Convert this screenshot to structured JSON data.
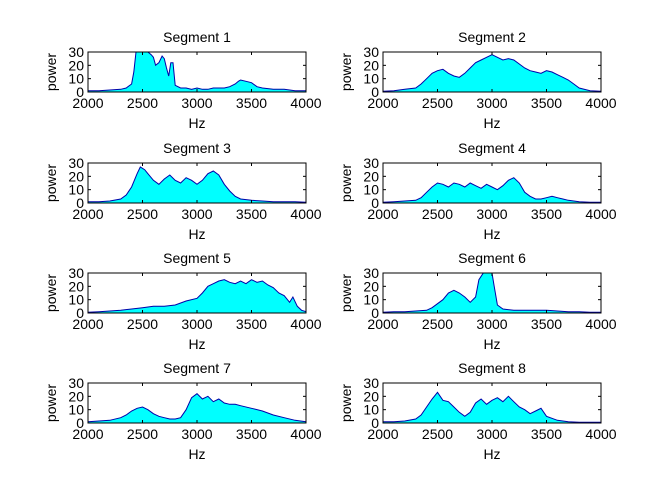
{
  "chart_data": [
    {
      "type": "area",
      "title": "Segment 1",
      "xlabel": "Hz",
      "ylabel": "power",
      "xlim": [
        2000,
        4000
      ],
      "ylim": [
        0,
        30
      ],
      "xticks": [
        2000,
        2500,
        3000,
        3500,
        4000
      ],
      "yticks": [
        0,
        10,
        20,
        30
      ],
      "fill_color": "#00ffff",
      "line_color": "#0000aa",
      "x": [
        2000,
        2100,
        2200,
        2300,
        2350,
        2400,
        2420,
        2440,
        2460,
        2500,
        2520,
        2550,
        2580,
        2600,
        2620,
        2650,
        2680,
        2700,
        2720,
        2740,
        2760,
        2780,
        2800,
        2850,
        2900,
        2950,
        3000,
        3050,
        3100,
        3150,
        3200,
        3250,
        3300,
        3350,
        3380,
        3400,
        3450,
        3500,
        3550,
        3600,
        3700,
        3800,
        3900,
        4000
      ],
      "values": [
        1,
        1,
        1.5,
        2,
        3,
        6,
        15,
        30,
        30,
        30,
        30,
        30,
        28,
        26,
        20,
        22,
        27,
        25,
        18,
        12,
        22,
        22,
        5,
        3,
        3,
        2,
        3,
        2,
        2,
        3,
        3,
        3,
        4,
        6,
        8,
        9,
        8,
        7,
        4,
        3,
        2,
        2,
        1,
        1
      ]
    },
    {
      "type": "area",
      "title": "Segment 2",
      "xlabel": "Hz",
      "ylabel": "power",
      "xlim": [
        2000,
        4000
      ],
      "ylim": [
        0,
        30
      ],
      "xticks": [
        2000,
        2500,
        3000,
        3500,
        4000
      ],
      "yticks": [
        0,
        10,
        20,
        30
      ],
      "fill_color": "#00ffff",
      "line_color": "#0000aa",
      "x": [
        2000,
        2100,
        2200,
        2300,
        2350,
        2400,
        2450,
        2500,
        2550,
        2600,
        2650,
        2700,
        2750,
        2800,
        2850,
        2900,
        2950,
        3000,
        3050,
        3100,
        3150,
        3200,
        3250,
        3300,
        3350,
        3400,
        3450,
        3500,
        3550,
        3600,
        3650,
        3700,
        3750,
        3800,
        3900,
        4000
      ],
      "values": [
        0.5,
        1,
        2,
        3,
        6,
        10,
        14,
        16,
        17,
        14,
        12,
        11,
        14,
        18,
        22,
        24,
        26,
        28,
        26,
        24,
        25,
        24,
        21,
        18,
        16,
        15,
        14,
        16,
        15,
        13,
        11,
        9,
        6,
        3,
        1,
        0.5
      ]
    },
    {
      "type": "area",
      "title": "Segment 3",
      "xlabel": "Hz",
      "ylabel": "power",
      "xlim": [
        2000,
        4000
      ],
      "ylim": [
        0,
        30
      ],
      "xticks": [
        2000,
        2500,
        3000,
        3500,
        4000
      ],
      "yticks": [
        0,
        10,
        20,
        30
      ],
      "fill_color": "#00ffff",
      "line_color": "#0000aa",
      "x": [
        2000,
        2100,
        2200,
        2300,
        2350,
        2400,
        2450,
        2480,
        2520,
        2550,
        2600,
        2650,
        2700,
        2750,
        2800,
        2850,
        2900,
        2950,
        3000,
        3050,
        3100,
        3150,
        3200,
        3250,
        3300,
        3350,
        3400,
        3500,
        3600,
        3700,
        3800,
        3900,
        4000
      ],
      "values": [
        1,
        1,
        1.5,
        3,
        6,
        12,
        22,
        27,
        25,
        22,
        17,
        14,
        18,
        21,
        17,
        15,
        19,
        17,
        14,
        17,
        22,
        24,
        21,
        14,
        9,
        5,
        3,
        2,
        1.5,
        1,
        1,
        1,
        0.5
      ]
    },
    {
      "type": "area",
      "title": "Segment 4",
      "xlabel": "Hz",
      "ylabel": "power",
      "xlim": [
        2000,
        4000
      ],
      "ylim": [
        0,
        30
      ],
      "xticks": [
        2000,
        2500,
        3000,
        3500,
        4000
      ],
      "yticks": [
        0,
        10,
        20,
        30
      ],
      "fill_color": "#00ffff",
      "line_color": "#0000aa",
      "x": [
        2000,
        2100,
        2200,
        2300,
        2350,
        2400,
        2450,
        2500,
        2550,
        2600,
        2650,
        2700,
        2750,
        2800,
        2850,
        2900,
        2950,
        3000,
        3050,
        3100,
        3150,
        3200,
        3250,
        3300,
        3350,
        3400,
        3450,
        3500,
        3550,
        3600,
        3650,
        3700,
        3800,
        3900,
        4000
      ],
      "values": [
        0.5,
        1,
        1.5,
        2,
        4,
        8,
        12,
        15,
        14,
        12,
        15,
        14,
        12,
        15,
        13,
        11,
        14,
        12,
        10,
        13,
        17,
        19,
        15,
        8,
        5,
        3,
        3,
        4,
        5,
        4,
        3,
        2,
        1,
        0.5,
        0.5
      ]
    },
    {
      "type": "area",
      "title": "Segment 5",
      "xlabel": "Hz",
      "ylabel": "power",
      "xlim": [
        2000,
        4000
      ],
      "ylim": [
        0,
        30
      ],
      "xticks": [
        2000,
        2500,
        3000,
        3500,
        4000
      ],
      "yticks": [
        0,
        10,
        20,
        30
      ],
      "fill_color": "#00ffff",
      "line_color": "#0000aa",
      "x": [
        2000,
        2100,
        2200,
        2300,
        2400,
        2500,
        2600,
        2700,
        2800,
        2900,
        3000,
        3050,
        3100,
        3150,
        3200,
        3250,
        3300,
        3350,
        3400,
        3450,
        3500,
        3550,
        3600,
        3650,
        3700,
        3750,
        3800,
        3850,
        3880,
        3920,
        3960,
        4000
      ],
      "values": [
        0.5,
        1,
        1.5,
        2,
        3,
        4,
        5,
        5,
        6,
        9,
        11,
        15,
        20,
        22,
        24,
        25,
        23,
        22,
        24,
        22,
        25,
        23,
        24,
        21,
        19,
        15,
        13,
        8,
        12,
        5,
        2,
        1
      ]
    },
    {
      "type": "area",
      "title": "Segment 6",
      "xlabel": "Hz",
      "ylabel": "power",
      "xlim": [
        2000,
        4000
      ],
      "ylim": [
        0,
        30
      ],
      "xticks": [
        2000,
        2500,
        3000,
        3500,
        4000
      ],
      "yticks": [
        0,
        10,
        20,
        30
      ],
      "fill_color": "#00ffff",
      "line_color": "#0000aa",
      "x": [
        2000,
        2100,
        2200,
        2300,
        2400,
        2450,
        2500,
        2550,
        2600,
        2650,
        2700,
        2750,
        2800,
        2850,
        2880,
        2920,
        2960,
        3000,
        3020,
        3050,
        3100,
        3200,
        3300,
        3400,
        3500,
        3600,
        3700,
        3800,
        3900,
        4000
      ],
      "values": [
        0.5,
        1,
        1,
        1.5,
        2,
        4,
        7,
        10,
        15,
        17,
        15,
        12,
        8,
        12,
        25,
        30,
        30,
        30,
        20,
        6,
        3,
        2,
        2,
        2,
        2,
        1.5,
        1,
        1,
        0.5,
        0.5
      ]
    },
    {
      "type": "area",
      "title": "Segment 7",
      "xlabel": "Hz",
      "ylabel": "power",
      "xlim": [
        2000,
        4000
      ],
      "ylim": [
        0,
        30
      ],
      "xticks": [
        2000,
        2500,
        3000,
        3500,
        4000
      ],
      "yticks": [
        0,
        10,
        20,
        30
      ],
      "fill_color": "#00ffff",
      "line_color": "#0000aa",
      "x": [
        2000,
        2100,
        2200,
        2300,
        2350,
        2400,
        2450,
        2500,
        2550,
        2600,
        2650,
        2700,
        2750,
        2800,
        2850,
        2900,
        2950,
        3000,
        3050,
        3100,
        3150,
        3200,
        3250,
        3300,
        3350,
        3400,
        3500,
        3600,
        3700,
        3800,
        3900,
        4000
      ],
      "values": [
        1,
        1.5,
        2,
        4,
        6,
        9,
        11,
        12,
        10,
        7,
        5,
        4,
        3,
        3,
        4,
        10,
        19,
        22,
        18,
        20,
        16,
        18,
        15,
        14,
        14,
        13,
        11,
        9,
        6,
        4,
        2,
        1
      ]
    },
    {
      "type": "area",
      "title": "Segment 8",
      "xlabel": "Hz",
      "ylabel": "power",
      "xlim": [
        2000,
        4000
      ],
      "ylim": [
        0,
        30
      ],
      "xticks": [
        2000,
        2500,
        3000,
        3500,
        4000
      ],
      "yticks": [
        0,
        10,
        20,
        30
      ],
      "fill_color": "#00ffff",
      "line_color": "#0000aa",
      "x": [
        2000,
        2100,
        2200,
        2300,
        2350,
        2400,
        2450,
        2500,
        2550,
        2600,
        2650,
        2700,
        2750,
        2800,
        2850,
        2900,
        2950,
        3000,
        3050,
        3100,
        3150,
        3200,
        3250,
        3300,
        3350,
        3400,
        3450,
        3500,
        3600,
        3700,
        3800,
        3900,
        4000
      ],
      "values": [
        1,
        1,
        1.5,
        3,
        6,
        12,
        18,
        23,
        17,
        16,
        12,
        8,
        5,
        8,
        15,
        18,
        14,
        17,
        19,
        16,
        20,
        16,
        12,
        10,
        7,
        9,
        11,
        5,
        2,
        1,
        0.5,
        0.5,
        0.5
      ]
    }
  ]
}
